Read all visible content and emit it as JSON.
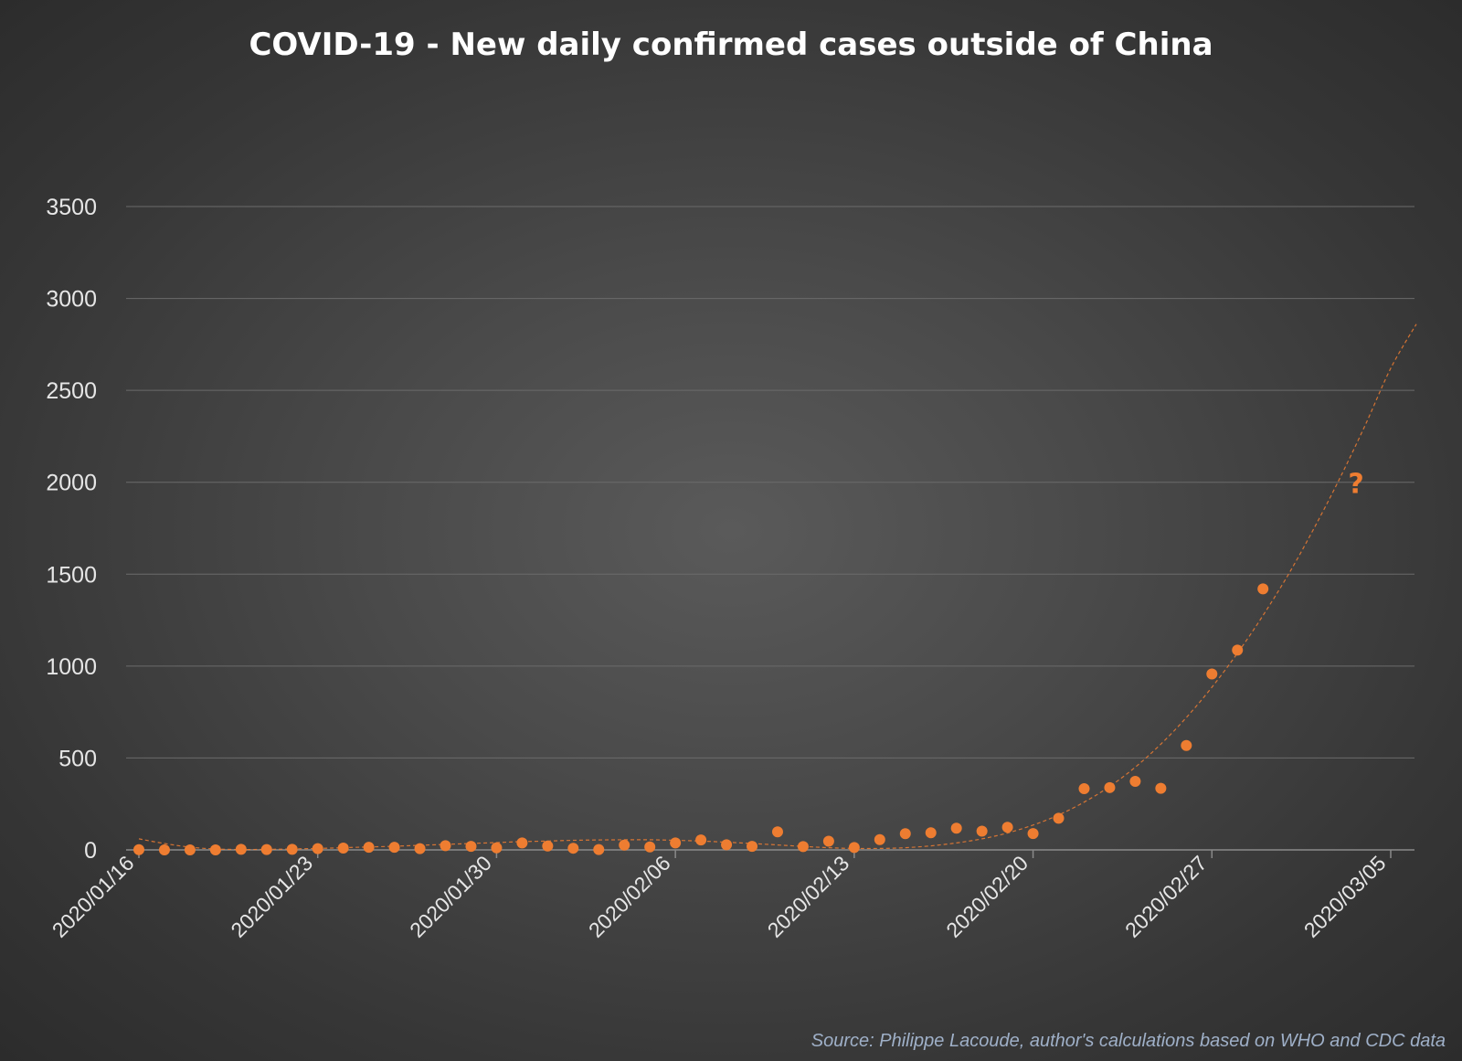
{
  "chart_data": {
    "type": "scatter",
    "title": "COVID-19 - New daily confirmed cases outside of China",
    "xlabel": "",
    "ylabel": "",
    "x_start": "2020/01/16",
    "x_end": "2020/03/05",
    "x_tick_labels": [
      "2020/01/16",
      "2020/01/23",
      "2020/01/30",
      "2020/02/06",
      "2020/02/13",
      "2020/02/20",
      "2020/02/27",
      "2020/03/05"
    ],
    "ylim": [
      0,
      3500
    ],
    "y_ticks": [
      0,
      500,
      1000,
      1500,
      2000,
      2500,
      3000,
      3500
    ],
    "grid": "horizontal",
    "legend": "none",
    "series": [
      {
        "marker_color": "#ee7d31",
        "points": [
          {
            "x": "2020/01/16",
            "y": 1
          },
          {
            "x": "2020/01/17",
            "y": 0
          },
          {
            "x": "2020/01/18",
            "y": 0
          },
          {
            "x": "2020/01/19",
            "y": 0
          },
          {
            "x": "2020/01/20",
            "y": 3
          },
          {
            "x": "2020/01/21",
            "y": 2
          },
          {
            "x": "2020/01/22",
            "y": 3
          },
          {
            "x": "2020/01/23",
            "y": 7
          },
          {
            "x": "2020/01/24",
            "y": 10
          },
          {
            "x": "2020/01/25",
            "y": 14
          },
          {
            "x": "2020/01/26",
            "y": 14
          },
          {
            "x": "2020/01/27",
            "y": 7
          },
          {
            "x": "2020/01/28",
            "y": 23
          },
          {
            "x": "2020/01/29",
            "y": 19
          },
          {
            "x": "2020/01/30",
            "y": 11
          },
          {
            "x": "2020/01/31",
            "y": 38
          },
          {
            "x": "2020/02/01",
            "y": 21
          },
          {
            "x": "2020/02/02",
            "y": 9
          },
          {
            "x": "2020/02/03",
            "y": 2
          },
          {
            "x": "2020/02/04",
            "y": 26
          },
          {
            "x": "2020/02/05",
            "y": 16
          },
          {
            "x": "2020/02/06",
            "y": 38
          },
          {
            "x": "2020/02/07",
            "y": 54
          },
          {
            "x": "2020/02/08",
            "y": 28
          },
          {
            "x": "2020/02/09",
            "y": 19
          },
          {
            "x": "2020/02/10",
            "y": 98
          },
          {
            "x": "2020/02/11",
            "y": 18
          },
          {
            "x": "2020/02/12",
            "y": 47
          },
          {
            "x": "2020/02/13",
            "y": 13
          },
          {
            "x": "2020/02/14",
            "y": 56
          },
          {
            "x": "2020/02/15",
            "y": 88
          },
          {
            "x": "2020/02/16",
            "y": 93
          },
          {
            "x": "2020/02/17",
            "y": 118
          },
          {
            "x": "2020/02/18",
            "y": 102
          },
          {
            "x": "2020/02/19",
            "y": 123
          },
          {
            "x": "2020/02/20",
            "y": 89
          },
          {
            "x": "2020/02/21",
            "y": 172
          },
          {
            "x": "2020/02/22",
            "y": 333
          },
          {
            "x": "2020/02/23",
            "y": 339
          },
          {
            "x": "2020/02/24",
            "y": 373
          },
          {
            "x": "2020/02/25",
            "y": 335
          },
          {
            "x": "2020/02/26",
            "y": 568
          },
          {
            "x": "2020/02/27",
            "y": 957
          },
          {
            "x": "2020/02/28",
            "y": 1087
          },
          {
            "x": "2020/02/29",
            "y": 1420
          }
        ]
      }
    ],
    "trendline": {
      "style": "dashed",
      "color": "#ee7d31",
      "points": [
        {
          "x": "2020/01/16",
          "y": 60
        },
        {
          "x": "2020/01/17",
          "y": 35
        },
        {
          "x": "2020/01/18",
          "y": 15
        },
        {
          "x": "2020/01/19",
          "y": 5
        },
        {
          "x": "2020/01/20",
          "y": 2
        },
        {
          "x": "2020/01/21",
          "y": 3
        },
        {
          "x": "2020/01/22",
          "y": 5
        },
        {
          "x": "2020/01/23",
          "y": 8
        },
        {
          "x": "2020/01/24",
          "y": 12
        },
        {
          "x": "2020/01/25",
          "y": 16
        },
        {
          "x": "2020/01/26",
          "y": 20
        },
        {
          "x": "2020/01/27",
          "y": 25
        },
        {
          "x": "2020/01/28",
          "y": 30
        },
        {
          "x": "2020/01/29",
          "y": 35
        },
        {
          "x": "2020/01/30",
          "y": 40
        },
        {
          "x": "2020/01/31",
          "y": 45
        },
        {
          "x": "2020/02/01",
          "y": 48
        },
        {
          "x": "2020/02/02",
          "y": 52
        },
        {
          "x": "2020/02/03",
          "y": 54
        },
        {
          "x": "2020/02/04",
          "y": 55
        },
        {
          "x": "2020/02/05",
          "y": 55
        },
        {
          "x": "2020/02/06",
          "y": 52
        },
        {
          "x": "2020/02/07",
          "y": 48
        },
        {
          "x": "2020/02/08",
          "y": 42
        },
        {
          "x": "2020/02/09",
          "y": 35
        },
        {
          "x": "2020/02/10",
          "y": 27
        },
        {
          "x": "2020/02/11",
          "y": 19
        },
        {
          "x": "2020/02/12",
          "y": 12
        },
        {
          "x": "2020/02/13",
          "y": 8
        },
        {
          "x": "2020/02/14",
          "y": 8
        },
        {
          "x": "2020/02/15",
          "y": 12
        },
        {
          "x": "2020/02/16",
          "y": 22
        },
        {
          "x": "2020/02/17",
          "y": 38
        },
        {
          "x": "2020/02/18",
          "y": 60
        },
        {
          "x": "2020/02/19",
          "y": 92
        },
        {
          "x": "2020/02/20",
          "y": 135
        },
        {
          "x": "2020/02/21",
          "y": 190
        },
        {
          "x": "2020/02/22",
          "y": 260
        },
        {
          "x": "2020/02/23",
          "y": 345
        },
        {
          "x": "2020/02/24",
          "y": 450
        },
        {
          "x": "2020/02/25",
          "y": 575
        },
        {
          "x": "2020/02/26",
          "y": 720
        },
        {
          "x": "2020/02/27",
          "y": 885
        },
        {
          "x": "2020/02/28",
          "y": 1070
        },
        {
          "x": "2020/02/29",
          "y": 1275
        },
        {
          "x": "2020/03/01",
          "y": 1500
        },
        {
          "x": "2020/03/02",
          "y": 1750
        },
        {
          "x": "2020/03/03",
          "y": 2020
        },
        {
          "x": "2020/03/04",
          "y": 2310
        },
        {
          "x": "2020/03/05",
          "y": 2620
        },
        {
          "x": "2020/03/06",
          "y": 2860
        }
      ]
    },
    "annotation": {
      "text": "?",
      "x": "2020/03/04",
      "y": 2000,
      "color": "#ee7d31"
    },
    "source": "Source: Philippe Lacoude, author's calculations based on WHO and CDC data",
    "colors": {
      "marker": "#ee7d31",
      "grid": "#6b6b6b",
      "text": "#e6e6e6",
      "source": "#9fb0c8"
    }
  }
}
